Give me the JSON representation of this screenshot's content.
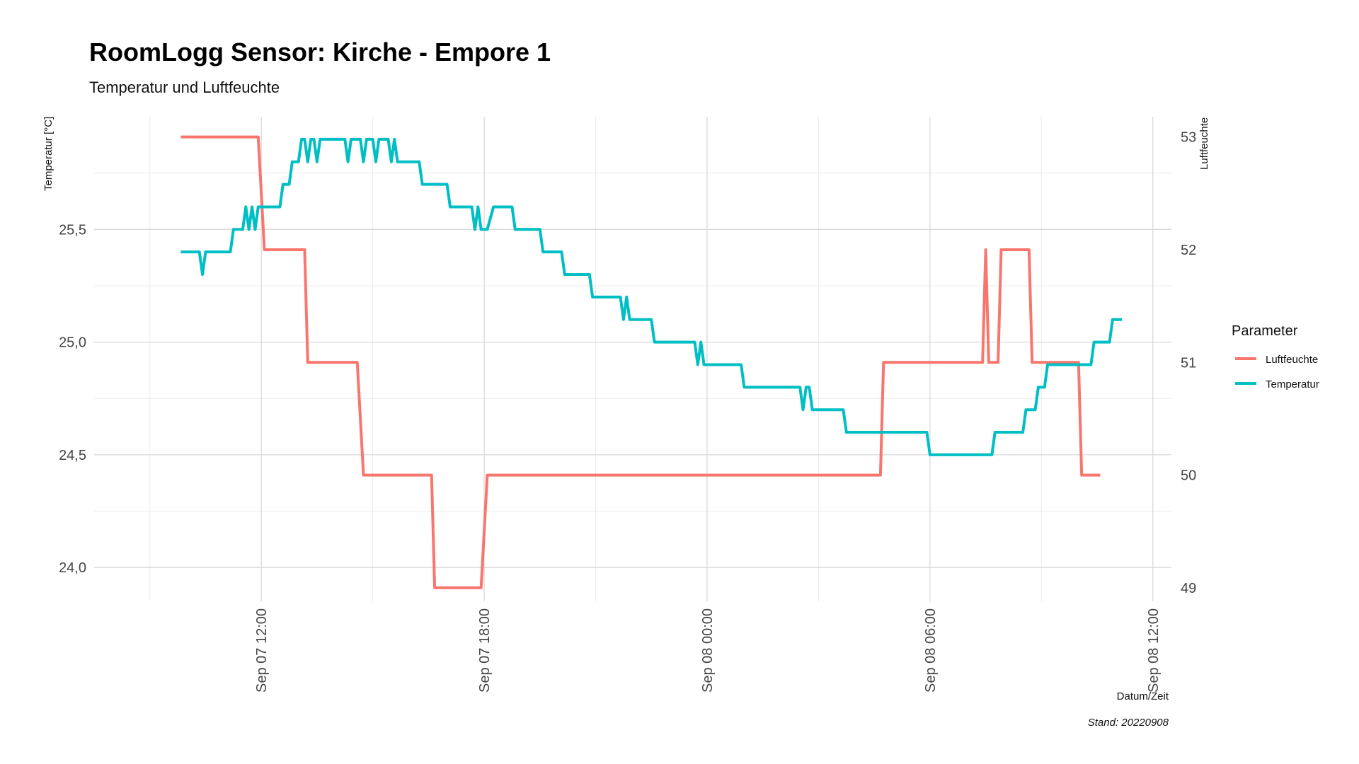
{
  "chart_data": {
    "type": "line",
    "title": "RoomLogg Sensor: Kirche - Empore 1",
    "subtitle": "Temperatur und Luftfeuchte",
    "xlabel": "Datum/Zeit",
    "ylabel_left": "Temperatur [°C]",
    "ylabel_right": "Luftfeuchte",
    "caption": "Stand: 20220908",
    "legend_title": "Parameter",
    "legend_position": "right",
    "grid": true,
    "xlim": [
      "2022-09-07 07:30",
      "2022-09-08 12:30"
    ],
    "x_ticks": [
      {
        "x": "2022-09-07 12:00",
        "label": "Sep 07 12:00"
      },
      {
        "x": "2022-09-07 18:00",
        "label": "Sep 07 18:00"
      },
      {
        "x": "2022-09-08 00:00",
        "label": "Sep 08 00:00"
      },
      {
        "x": "2022-09-08 06:00",
        "label": "Sep 08 06:00"
      },
      {
        "x": "2022-09-08 12:00",
        "label": "Sep 08 12:00"
      }
    ],
    "ylim_left": [
      23.85,
      26.0
    ],
    "y_ticks_left": [
      {
        "value": 24.0,
        "label": "24,0"
      },
      {
        "value": 24.5,
        "label": "24,5"
      },
      {
        "value": 25.0,
        "label": "25,0"
      },
      {
        "value": 25.5,
        "label": "25,5"
      }
    ],
    "ylim_right": [
      48.88,
      53.18
    ],
    "y_ticks_right": [
      {
        "value": 49,
        "label": "49"
      },
      {
        "value": 50,
        "label": "50"
      },
      {
        "value": 51,
        "label": "51"
      },
      {
        "value": 52,
        "label": "52"
      },
      {
        "value": 53,
        "label": "53"
      }
    ],
    "series": [
      {
        "name": "Luftfeuchte",
        "color": "#F8766D",
        "axis": "right",
        "points": [
          [
            "2022-09-07 09:50",
            53
          ],
          [
            "2022-09-07 11:55",
            53
          ],
          [
            "2022-09-07 12:05",
            52
          ],
          [
            "2022-09-07 13:10",
            52
          ],
          [
            "2022-09-07 13:15",
            51
          ],
          [
            "2022-09-07 14:35",
            51
          ],
          [
            "2022-09-07 14:45",
            50
          ],
          [
            "2022-09-07 16:35",
            50
          ],
          [
            "2022-09-07 16:40",
            49
          ],
          [
            "2022-09-07 17:55",
            49
          ],
          [
            "2022-09-07 18:05",
            50
          ],
          [
            "2022-09-08 04:40",
            50
          ],
          [
            "2022-09-08 04:45",
            51
          ],
          [
            "2022-09-08 07:25",
            51
          ],
          [
            "2022-09-08 07:30",
            52
          ],
          [
            "2022-09-08 07:35",
            51
          ],
          [
            "2022-09-08 07:50",
            51
          ],
          [
            "2022-09-08 07:55",
            52
          ],
          [
            "2022-09-08 08:40",
            52
          ],
          [
            "2022-09-08 08:45",
            51
          ],
          [
            "2022-09-08 10:00",
            51
          ],
          [
            "2022-09-08 10:05",
            50
          ],
          [
            "2022-09-08 10:35",
            50
          ]
        ]
      },
      {
        "name": "Temperatur",
        "color": "#00BFC4",
        "axis": "left",
        "points": [
          [
            "2022-09-07 09:50",
            25.4
          ],
          [
            "2022-09-07 10:20",
            25.4
          ],
          [
            "2022-09-07 10:25",
            25.3
          ],
          [
            "2022-09-07 10:30",
            25.4
          ],
          [
            "2022-09-07 11:10",
            25.4
          ],
          [
            "2022-09-07 11:15",
            25.5
          ],
          [
            "2022-09-07 11:30",
            25.5
          ],
          [
            "2022-09-07 11:35",
            25.6
          ],
          [
            "2022-09-07 11:40",
            25.5
          ],
          [
            "2022-09-07 11:45",
            25.6
          ],
          [
            "2022-09-07 11:50",
            25.5
          ],
          [
            "2022-09-07 11:55",
            25.6
          ],
          [
            "2022-09-07 12:30",
            25.6
          ],
          [
            "2022-09-07 12:35",
            25.7
          ],
          [
            "2022-09-07 12:45",
            25.7
          ],
          [
            "2022-09-07 12:50",
            25.8
          ],
          [
            "2022-09-07 13:00",
            25.8
          ],
          [
            "2022-09-07 13:05",
            25.9
          ],
          [
            "2022-09-07 13:10",
            25.9
          ],
          [
            "2022-09-07 13:15",
            25.8
          ],
          [
            "2022-09-07 13:20",
            25.9
          ],
          [
            "2022-09-07 13:25",
            25.9
          ],
          [
            "2022-09-07 13:30",
            25.8
          ],
          [
            "2022-09-07 13:35",
            25.9
          ],
          [
            "2022-09-07 14:15",
            25.9
          ],
          [
            "2022-09-07 14:20",
            25.8
          ],
          [
            "2022-09-07 14:25",
            25.9
          ],
          [
            "2022-09-07 14:40",
            25.9
          ],
          [
            "2022-09-07 14:45",
            25.8
          ],
          [
            "2022-09-07 14:50",
            25.9
          ],
          [
            "2022-09-07 15:00",
            25.9
          ],
          [
            "2022-09-07 15:05",
            25.8
          ],
          [
            "2022-09-07 15:10",
            25.9
          ],
          [
            "2022-09-07 15:25",
            25.9
          ],
          [
            "2022-09-07 15:30",
            25.8
          ],
          [
            "2022-09-07 15:35",
            25.9
          ],
          [
            "2022-09-07 15:40",
            25.8
          ],
          [
            "2022-09-07 16:15",
            25.8
          ],
          [
            "2022-09-07 16:20",
            25.7
          ],
          [
            "2022-09-07 17:00",
            25.7
          ],
          [
            "2022-09-07 17:05",
            25.6
          ],
          [
            "2022-09-07 17:40",
            25.6
          ],
          [
            "2022-09-07 17:45",
            25.5
          ],
          [
            "2022-09-07 17:50",
            25.6
          ],
          [
            "2022-09-07 17:55",
            25.5
          ],
          [
            "2022-09-07 18:05",
            25.5
          ],
          [
            "2022-09-07 18:15",
            25.6
          ],
          [
            "2022-09-07 18:45",
            25.6
          ],
          [
            "2022-09-07 18:50",
            25.5
          ],
          [
            "2022-09-07 19:30",
            25.5
          ],
          [
            "2022-09-07 19:35",
            25.4
          ],
          [
            "2022-09-07 20:05",
            25.4
          ],
          [
            "2022-09-07 20:10",
            25.3
          ],
          [
            "2022-09-07 20:50",
            25.3
          ],
          [
            "2022-09-07 20:55",
            25.2
          ],
          [
            "2022-09-07 21:40",
            25.2
          ],
          [
            "2022-09-07 21:45",
            25.1
          ],
          [
            "2022-09-07 21:50",
            25.2
          ],
          [
            "2022-09-07 21:55",
            25.1
          ],
          [
            "2022-09-07 22:30",
            25.1
          ],
          [
            "2022-09-07 22:35",
            25.0
          ],
          [
            "2022-09-07 23:40",
            25.0
          ],
          [
            "2022-09-07 23:45",
            24.9
          ],
          [
            "2022-09-07 23:50",
            25.0
          ],
          [
            "2022-09-07 23:55",
            24.9
          ],
          [
            "2022-09-08 00:55",
            24.9
          ],
          [
            "2022-09-08 01:00",
            24.8
          ],
          [
            "2022-09-08 02:30",
            24.8
          ],
          [
            "2022-09-08 02:35",
            24.7
          ],
          [
            "2022-09-08 02:40",
            24.8
          ],
          [
            "2022-09-08 02:45",
            24.8
          ],
          [
            "2022-09-08 02:50",
            24.7
          ],
          [
            "2022-09-08 03:40",
            24.7
          ],
          [
            "2022-09-08 03:45",
            24.6
          ],
          [
            "2022-09-08 05:55",
            24.6
          ],
          [
            "2022-09-08 06:00",
            24.5
          ],
          [
            "2022-09-08 07:40",
            24.5
          ],
          [
            "2022-09-08 07:45",
            24.6
          ],
          [
            "2022-09-08 08:30",
            24.6
          ],
          [
            "2022-09-08 08:35",
            24.7
          ],
          [
            "2022-09-08 08:50",
            24.7
          ],
          [
            "2022-09-08 08:55",
            24.8
          ],
          [
            "2022-09-08 09:05",
            24.8
          ],
          [
            "2022-09-08 09:10",
            24.9
          ],
          [
            "2022-09-08 10:20",
            24.9
          ],
          [
            "2022-09-08 10:25",
            25.0
          ],
          [
            "2022-09-08 10:50",
            25.0
          ],
          [
            "2022-09-08 10:55",
            25.1
          ],
          [
            "2022-09-08 11:10",
            25.1
          ]
        ]
      }
    ]
  }
}
